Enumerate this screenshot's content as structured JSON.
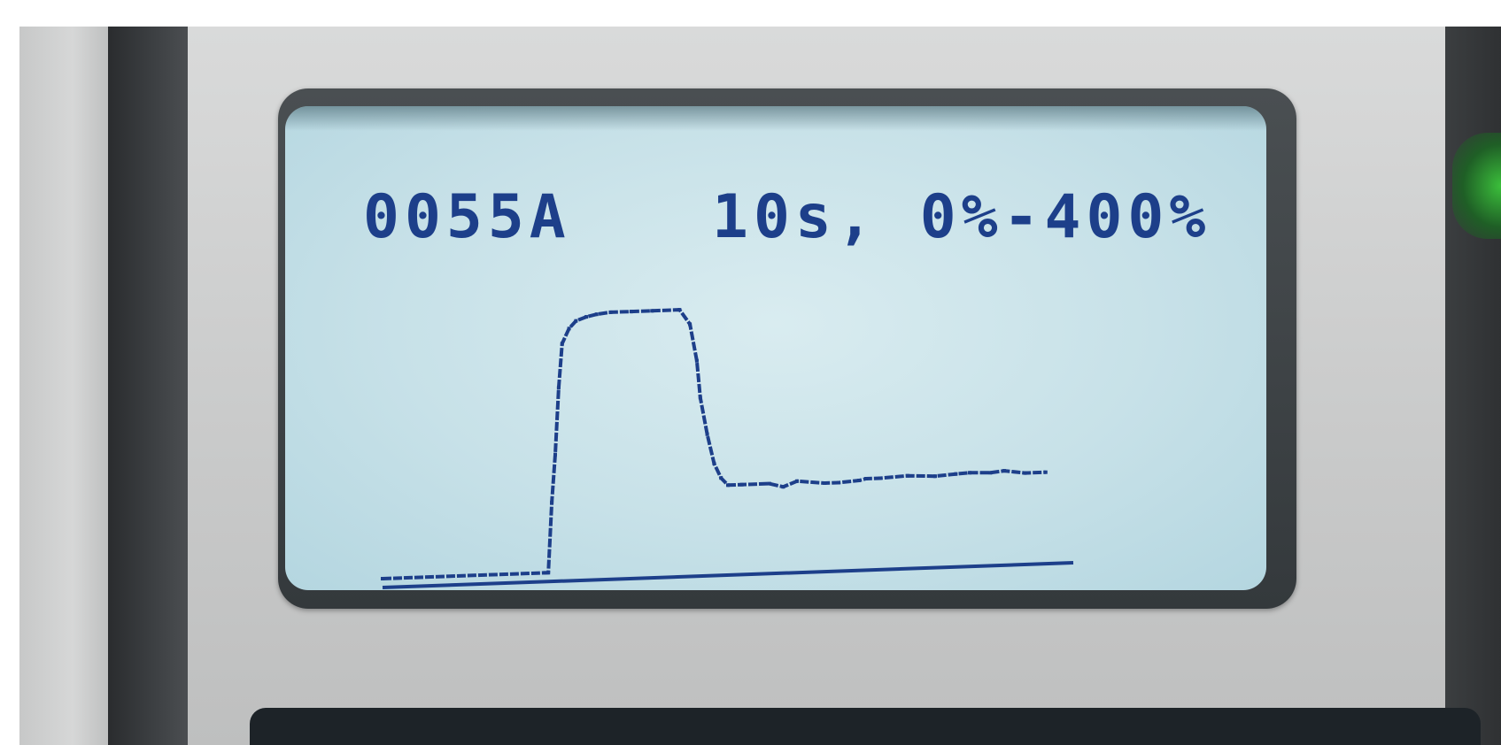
{
  "display": {
    "current_readout": "0055A",
    "scale_readout": "10s, 0%-400%"
  },
  "colors": {
    "lcd_background": "#cfe6ec",
    "lcd_text": "#1d3f8a",
    "trace": "#1d3f8a",
    "status_light": "#3bbf3b"
  },
  "chart_data": {
    "type": "line",
    "x": [
      0.0,
      2.35,
      2.4,
      2.45,
      2.5,
      2.55,
      2.6,
      2.7,
      2.8,
      2.95,
      3.1,
      3.3,
      3.6,
      3.9,
      4.3,
      4.45,
      4.55,
      4.6,
      4.7,
      4.8,
      4.9,
      5.0,
      5.2,
      5.6,
      5.8,
      6.0,
      6.4,
      6.6,
      6.9,
      7.0,
      7.2,
      7.6,
      8.0,
      8.3,
      8.5,
      8.8,
      9.0,
      9.3,
      9.6
    ],
    "y": [
      0,
      0,
      0,
      95,
      160,
      250,
      310,
      330,
      340,
      345,
      348,
      350,
      350,
      350,
      350,
      330,
      280,
      230,
      180,
      140,
      120,
      110,
      110,
      110,
      105,
      112,
      108,
      108,
      110,
      112,
      112,
      114,
      112,
      114,
      115,
      114,
      116,
      112,
      112
    ],
    "xlim": [
      0,
      10
    ],
    "ylim": [
      0,
      400
    ]
  }
}
